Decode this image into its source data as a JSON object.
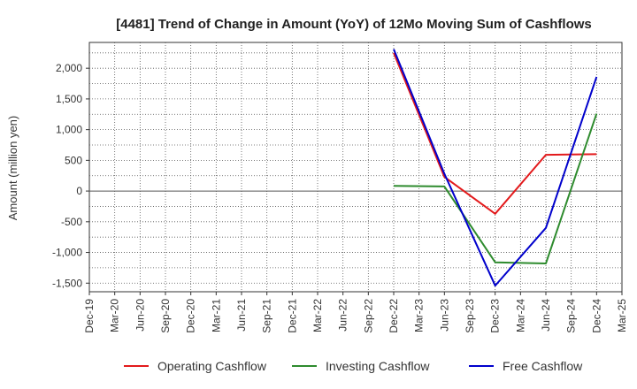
{
  "chart_data": {
    "type": "line",
    "title": "[4481]  Trend of Change in Amount (YoY) of 12Mo Moving Sum of Cashflows",
    "xlabel": "",
    "ylabel": "Amount (million yen)",
    "categories": [
      "Dec-19",
      "Mar-20",
      "Jun-20",
      "Sep-20",
      "Dec-20",
      "Mar-21",
      "Jun-21",
      "Sep-21",
      "Dec-21",
      "Mar-22",
      "Jun-22",
      "Sep-22",
      "Dec-22",
      "Mar-23",
      "Jun-23",
      "Sep-23",
      "Dec-23",
      "Mar-24",
      "Jun-24",
      "Sep-24",
      "Dec-24",
      "Mar-25"
    ],
    "ylim": [
      -1640,
      2420
    ],
    "yticks": [
      -1500,
      -1000,
      -500,
      0,
      500,
      1000,
      1500,
      2000
    ],
    "ytick_labels": [
      "-1,500",
      "-1,000",
      "-500",
      "0",
      "500",
      "1,000",
      "1,500",
      "2,000"
    ],
    "grid": true,
    "legend_position": "bottom",
    "series": [
      {
        "name": "Operating Cashflow",
        "color": "#e31a1c",
        "values": [
          null,
          null,
          null,
          null,
          null,
          null,
          null,
          null,
          null,
          null,
          null,
          null,
          2250,
          null,
          230,
          null,
          -370,
          null,
          590,
          null,
          600,
          null
        ]
      },
      {
        "name": "Investing Cashflow",
        "color": "#2e8b2e",
        "values": [
          null,
          null,
          null,
          null,
          null,
          null,
          null,
          null,
          null,
          null,
          null,
          null,
          85,
          null,
          75,
          null,
          -1160,
          null,
          -1180,
          null,
          1260,
          null
        ]
      },
      {
        "name": "Free Cashflow",
        "color": "#0000cc",
        "values": [
          null,
          null,
          null,
          null,
          null,
          null,
          null,
          null,
          null,
          null,
          null,
          null,
          2310,
          null,
          280,
          null,
          -1540,
          null,
          -600,
          null,
          1860,
          null
        ]
      }
    ]
  }
}
